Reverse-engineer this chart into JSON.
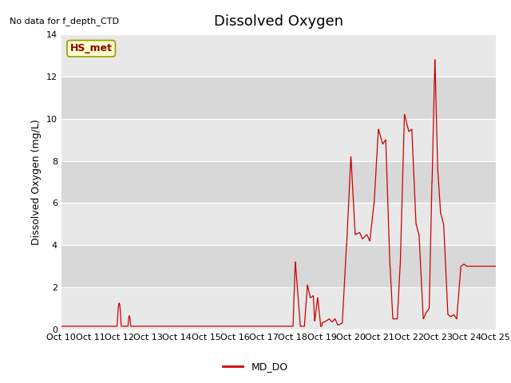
{
  "title": "Dissolved Oxygen",
  "ylabel": "Dissolved Oxygen (mg/L)",
  "no_data_text": "No data for f_depth_CTD",
  "legend_label": "MD_DO",
  "hs_met_label": "HS_met",
  "line_color": "#cc0000",
  "ylim": [
    0,
    14
  ],
  "yticks": [
    0,
    2,
    4,
    6,
    8,
    10,
    12,
    14
  ],
  "band_colors": [
    "#e8e8e8",
    "#d8d8d8"
  ],
  "title_fontsize": 13,
  "label_fontsize": 9,
  "tick_fontsize": 8
}
